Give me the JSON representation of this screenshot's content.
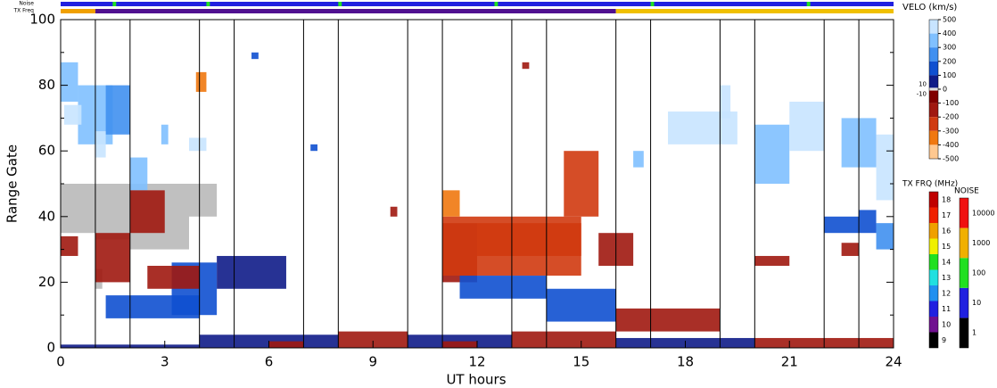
{
  "chart_data": {
    "type": "range-time",
    "xlabel": "UT hours",
    "ylabel": "Range Gate",
    "xlim": [
      0,
      24
    ],
    "ylim": [
      0,
      100
    ],
    "xticks": [
      0,
      3,
      6,
      9,
      12,
      15,
      18,
      21,
      24
    ],
    "xminor": [
      1,
      2,
      4,
      5,
      7,
      8,
      10,
      11,
      13,
      14,
      16,
      17,
      19,
      20,
      22,
      23
    ],
    "yticks": [
      0,
      20,
      40,
      60,
      80,
      100
    ],
    "yminor": [
      10,
      30,
      50,
      70,
      90
    ],
    "cells": [
      [
        0,
        0.5,
        75,
        87,
        300
      ],
      [
        0.5,
        1.5,
        62,
        80,
        350
      ],
      [
        1.3,
        2,
        65,
        80,
        250
      ],
      [
        2,
        2.5,
        48,
        58,
        300
      ],
      [
        0.1,
        0.6,
        68,
        74,
        450
      ],
      [
        1,
        1.3,
        58,
        66,
        450
      ],
      [
        1,
        2,
        20,
        35,
        -150
      ],
      [
        2,
        3,
        35,
        48,
        -150
      ],
      [
        0,
        0.5,
        28,
        34,
        -150
      ],
      [
        1.3,
        4,
        9,
        16,
        100
      ],
      [
        3.2,
        4.5,
        10,
        26,
        100
      ],
      [
        4.5,
        6.5,
        18,
        28,
        80
      ],
      [
        2.5,
        4,
        18,
        25,
        -120
      ],
      [
        3.7,
        4.2,
        60,
        64,
        450
      ],
      [
        2.9,
        3.1,
        62,
        68,
        350
      ],
      [
        3.9,
        4.2,
        78,
        84,
        -350
      ],
      [
        4,
        8,
        0,
        4,
        90
      ],
      [
        8,
        10,
        0,
        5,
        -150
      ],
      [
        10,
        13,
        0,
        4,
        90
      ],
      [
        13,
        16,
        0,
        5,
        -150
      ],
      [
        6,
        7,
        0,
        2,
        -150
      ],
      [
        11,
        12,
        0,
        2,
        -150
      ],
      [
        0,
        4,
        0,
        1,
        90
      ],
      [
        11,
        12,
        20,
        38,
        -200
      ],
      [
        11,
        15,
        22,
        40,
        -280
      ],
      [
        12,
        15,
        28,
        38,
        -250
      ],
      [
        14.5,
        15.5,
        40,
        60,
        -300
      ],
      [
        11.5,
        14,
        15,
        22,
        100
      ],
      [
        14,
        16,
        8,
        18,
        100
      ],
      [
        15.5,
        16.5,
        25,
        35,
        -150
      ],
      [
        16,
        19,
        5,
        12,
        -150
      ],
      [
        11,
        11.5,
        40,
        48,
        -350
      ],
      [
        17.5,
        19.5,
        62,
        72,
        400
      ],
      [
        20,
        21,
        50,
        68,
        350
      ],
      [
        21,
        22,
        60,
        75,
        400
      ],
      [
        22.5,
        23.5,
        55,
        70,
        300
      ],
      [
        23.5,
        24,
        45,
        65,
        400
      ],
      [
        22,
        23,
        35,
        40,
        150
      ],
      [
        23,
        23.5,
        35,
        42,
        120
      ],
      [
        23.5,
        24,
        30,
        38,
        250
      ],
      [
        20,
        21,
        25,
        28,
        -150
      ],
      [
        16,
        20,
        0,
        3,
        90
      ],
      [
        20,
        24,
        0,
        3,
        -150
      ],
      [
        19,
        19.3,
        70,
        80,
        450
      ],
      [
        22.5,
        23,
        28,
        32,
        -200
      ],
      [
        16.5,
        16.8,
        55,
        60,
        300
      ],
      [
        9.5,
        9.7,
        40,
        43,
        -200
      ],
      [
        7.2,
        7.4,
        60,
        62,
        100
      ],
      [
        5.5,
        5.7,
        88,
        90,
        100
      ],
      [
        13.3,
        13.5,
        85,
        87,
        -150
      ]
    ],
    "ground_scatter": [
      [
        0,
        1,
        35,
        50
      ],
      [
        1,
        2,
        33,
        50
      ],
      [
        2,
        3.7,
        30,
        50
      ],
      [
        3.7,
        4.5,
        40,
        50
      ],
      [
        1,
        1.2,
        18,
        24
      ]
    ],
    "velocity_scale": {
      "label": "VELO (km/s)",
      "lim": [
        -500,
        500
      ],
      "ticks": [
        500,
        400,
        300,
        200,
        100,
        0,
        -100,
        -200,
        -300,
        -400,
        -500
      ],
      "inner_ticks": [
        10,
        -10
      ],
      "bins": [
        [
          500,
          400,
          "#c8e4ff"
        ],
        [
          400,
          300,
          "#80c0ff"
        ],
        [
          300,
          200,
          "#4090f0"
        ],
        [
          200,
          100,
          "#1050d0"
        ],
        [
          100,
          10,
          "#101c88"
        ],
        [
          10,
          -10,
          "#dddddd"
        ],
        [
          -10,
          -100,
          "#800000"
        ],
        [
          -100,
          -200,
          "#a01810"
        ],
        [
          -200,
          -300,
          "#d03a10"
        ],
        [
          -300,
          -400,
          "#f07810"
        ],
        [
          -400,
          -500,
          "#ffc890"
        ]
      ]
    },
    "ground_color": "#c0c0c0",
    "tx_freq_scale": {
      "label": "TX FRQ (MHz)",
      "ticks": [
        9,
        10,
        11,
        12,
        13,
        14,
        15,
        16,
        17,
        18
      ],
      "colors": [
        "#000000",
        "#701090",
        "#2020e0",
        "#2090f0",
        "#20e0e0",
        "#20e020",
        "#f0f000",
        "#f0a000",
        "#f02000",
        "#c00000"
      ]
    },
    "noise_scale": {
      "label": "NOISE",
      "ticks": [
        1,
        10,
        100,
        1000,
        10000
      ],
      "colors": [
        "#000000",
        "#2020e0",
        "#20e020",
        "#f0b000",
        "#f01010"
      ]
    },
    "noise_bar": {
      "label": "Noise",
      "segments": [
        [
          0,
          24,
          "#2020e0"
        ],
        [
          1.5,
          1.6,
          "#20e020"
        ],
        [
          4.2,
          4.3,
          "#20e020"
        ],
        [
          8,
          8.1,
          "#20e020"
        ],
        [
          12.5,
          12.6,
          "#20e020"
        ],
        [
          17,
          17.1,
          "#20e020"
        ],
        [
          21.5,
          21.6,
          "#20e020"
        ]
      ]
    },
    "tx_bar": {
      "label": "TX Freq",
      "segments": [
        [
          0,
          1,
          "#f0a000"
        ],
        [
          1,
          16,
          "#501090"
        ],
        [
          16,
          24,
          "#f0c000"
        ]
      ]
    }
  }
}
